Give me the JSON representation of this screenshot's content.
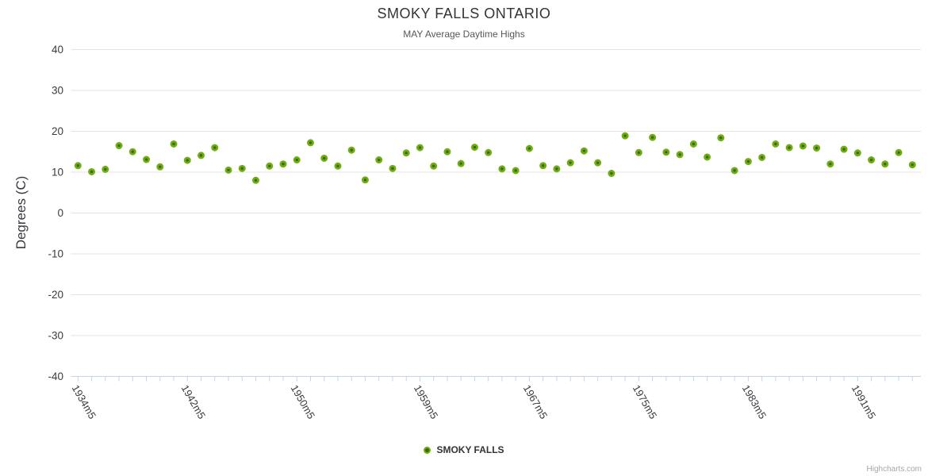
{
  "footer": {
    "credit": "Highcharts.com"
  },
  "chart_data": {
    "type": "scatter",
    "title": "SMOKY FALLS ONTARIO",
    "subtitle": "MAY Average Daytime Highs",
    "xlabel": "",
    "ylabel": "Degrees (C)",
    "ylim": [
      -40,
      40
    ],
    "yticks": [
      40,
      30,
      20,
      10,
      0,
      -10,
      -20,
      -30,
      -40
    ],
    "grid": true,
    "legend_position": "bottom-center",
    "x_years": [
      1934,
      1935,
      1936,
      1937,
      1938,
      1939,
      1940,
      1941,
      1942,
      1943,
      1944,
      1945,
      1946,
      1947,
      1948,
      1949,
      1950,
      1951,
      1952,
      1953,
      1954,
      1955,
      1956,
      1957,
      1958,
      1959,
      1960,
      1961,
      1962,
      1963,
      1964,
      1965,
      1966,
      1967,
      1968,
      1969,
      1970,
      1971,
      1972,
      1973,
      1974,
      1975,
      1976,
      1977,
      1978,
      1979,
      1980,
      1981,
      1982,
      1983,
      1984,
      1985,
      1986,
      1987,
      1988,
      1989,
      1990,
      1991,
      1992,
      1993,
      1994,
      1995
    ],
    "xticks": [
      {
        "index": 0,
        "label": "1934m5"
      },
      {
        "index": 8,
        "label": "1942m5"
      },
      {
        "index": 16,
        "label": "1950m5"
      },
      {
        "index": 25,
        "label": "1959m5"
      },
      {
        "index": 33,
        "label": "1967m5"
      },
      {
        "index": 41,
        "label": "1975m5"
      },
      {
        "index": 49,
        "label": "1983m5"
      },
      {
        "index": 57,
        "label": "1991m5"
      }
    ],
    "series": [
      {
        "name": "SMOKY FALLS",
        "values": [
          11.6,
          10.1,
          10.7,
          16.5,
          15.0,
          13.1,
          11.3,
          16.9,
          12.9,
          14.1,
          16.0,
          10.5,
          10.9,
          8.0,
          11.5,
          12.0,
          13.0,
          17.2,
          13.4,
          11.5,
          15.4,
          8.1,
          13.0,
          10.9,
          14.7,
          16.0,
          11.5,
          15.0,
          12.1,
          16.1,
          14.8,
          10.8,
          10.4,
          15.8,
          11.6,
          10.8,
          12.3,
          15.2,
          12.3,
          9.7,
          18.9,
          14.8,
          18.5,
          14.9,
          14.3,
          16.9,
          13.7,
          18.4,
          10.4,
          12.6,
          13.6,
          16.9,
          16.0,
          16.4,
          15.9,
          12.0,
          15.6,
          14.7,
          13.0,
          12.0,
          14.8,
          11.8
        ]
      }
    ],
    "colors": {
      "marker_stroke": "#6fae11",
      "marker_fill": "#3d640a",
      "grid": "#e3e3e3",
      "axis": "#c5d3e2",
      "tick_label": "#3a3a40",
      "title": "#333338",
      "subtitle": "#55585c"
    }
  }
}
